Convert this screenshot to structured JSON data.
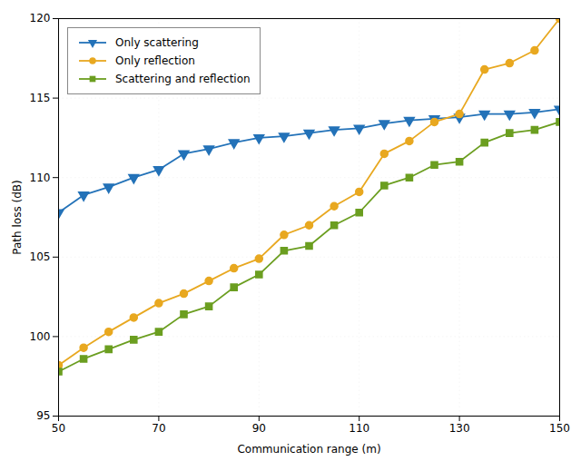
{
  "chart_data": {
    "type": "line",
    "xlabel": "Communication range (m)",
    "ylabel": "Path loss (dB)",
    "x": [
      50,
      55,
      60,
      65,
      70,
      75,
      80,
      85,
      90,
      95,
      100,
      105,
      110,
      115,
      120,
      125,
      130,
      135,
      140,
      145,
      150
    ],
    "series": [
      {
        "name": "Only scattering",
        "color": "#2372b8",
        "marker": "triangle_down",
        "values": [
          107.8,
          108.9,
          109.4,
          110.0,
          110.5,
          111.5,
          111.8,
          112.2,
          112.5,
          112.6,
          112.8,
          113.0,
          113.1,
          113.4,
          113.6,
          113.7,
          113.8,
          114.0,
          114.0,
          114.1,
          114.3
        ]
      },
      {
        "name": "Only reflection",
        "color": "#e8a820",
        "marker": "circle",
        "values": [
          98.2,
          99.3,
          100.3,
          101.2,
          102.1,
          102.7,
          103.5,
          104.3,
          104.9,
          106.4,
          107.0,
          108.2,
          109.1,
          111.5,
          112.3,
          113.5,
          114.0,
          116.8,
          117.2,
          118.0,
          120.0
        ]
      },
      {
        "name": "Scattering and reflection",
        "color": "#6b9e20",
        "marker": "square",
        "values": [
          97.8,
          98.6,
          99.2,
          99.8,
          100.3,
          101.4,
          101.9,
          103.1,
          103.9,
          105.4,
          105.7,
          107.0,
          107.8,
          109.5,
          110.0,
          110.8,
          111.0,
          112.2,
          112.8,
          113.0,
          113.5
        ]
      }
    ],
    "xlim": [
      50,
      150
    ],
    "ylim": [
      95,
      120
    ],
    "xticks": [
      50,
      70,
      90,
      110,
      130,
      150
    ],
    "yticks": [
      95,
      100,
      105,
      110,
      115,
      120
    ],
    "grid": true,
    "legend": "upper left"
  }
}
